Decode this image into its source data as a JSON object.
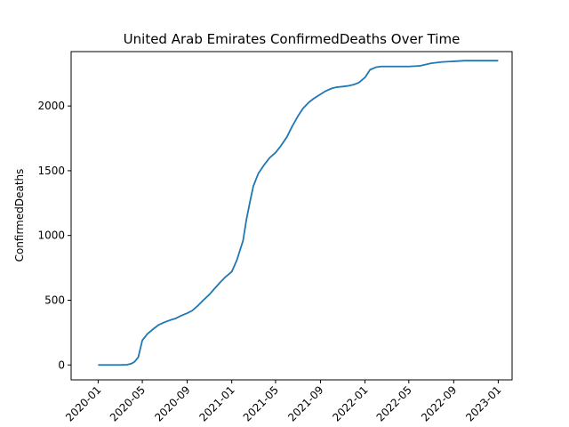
{
  "chart_data": {
    "type": "line",
    "title": "United Arab Emirates  ConfirmedDeaths Over Time",
    "xlabel": "",
    "ylabel": "ConfirmedDeaths",
    "x_ticks": [
      "2020-01",
      "2020-05",
      "2020-09",
      "2021-01",
      "2021-05",
      "2021-09",
      "2022-01",
      "2022-05",
      "2022-09",
      "2023-01"
    ],
    "y_ticks": [
      0,
      500,
      1000,
      1500,
      2000
    ],
    "xlim": [
      "2019-10-19",
      "2023-02-08"
    ],
    "ylim": [
      -115,
      2420
    ],
    "grid": false,
    "line_color": "#1f77b4",
    "series": [
      {
        "x": [
          "2020-01-01",
          "2020-03-01",
          "2020-03-20",
          "2020-04-01",
          "2020-04-10",
          "2020-04-20",
          "2020-05-01",
          "2020-05-15",
          "2020-06-01",
          "2020-06-15",
          "2020-07-01",
          "2020-07-15",
          "2020-08-01",
          "2020-08-15",
          "2020-09-01",
          "2020-09-15",
          "2020-10-01",
          "2020-10-15",
          "2020-11-01",
          "2020-11-15",
          "2020-12-01",
          "2020-12-15",
          "2021-01-01",
          "2021-01-15",
          "2021-02-01",
          "2021-02-10",
          "2021-02-20",
          "2021-03-01",
          "2021-03-15",
          "2021-04-01",
          "2021-04-15",
          "2021-05-01",
          "2021-05-15",
          "2021-06-01",
          "2021-06-15",
          "2021-07-01",
          "2021-07-15",
          "2021-08-01",
          "2021-08-15",
          "2021-09-01",
          "2021-09-15",
          "2021-10-01",
          "2021-10-15",
          "2021-11-01",
          "2021-11-15",
          "2021-12-01",
          "2021-12-15",
          "2022-01-01",
          "2022-01-15",
          "2022-02-01",
          "2022-02-15",
          "2022-03-01",
          "2022-04-01",
          "2022-05-01",
          "2022-06-01",
          "2022-07-01",
          "2022-08-01",
          "2022-09-01",
          "2022-10-01",
          "2022-11-01",
          "2023-01-01"
        ],
        "values": [
          0,
          0,
          2,
          10,
          25,
          60,
          190,
          240,
          280,
          310,
          330,
          345,
          360,
          380,
          400,
          420,
          460,
          500,
          545,
          590,
          640,
          680,
          720,
          810,
          960,
          1120,
          1260,
          1380,
          1480,
          1550,
          1600,
          1640,
          1690,
          1760,
          1840,
          1920,
          1980,
          2030,
          2060,
          2090,
          2115,
          2135,
          2145,
          2150,
          2155,
          2165,
          2180,
          2220,
          2280,
          2300,
          2305,
          2305,
          2305,
          2305,
          2310,
          2330,
          2340,
          2345,
          2350,
          2350,
          2350
        ]
      }
    ]
  }
}
